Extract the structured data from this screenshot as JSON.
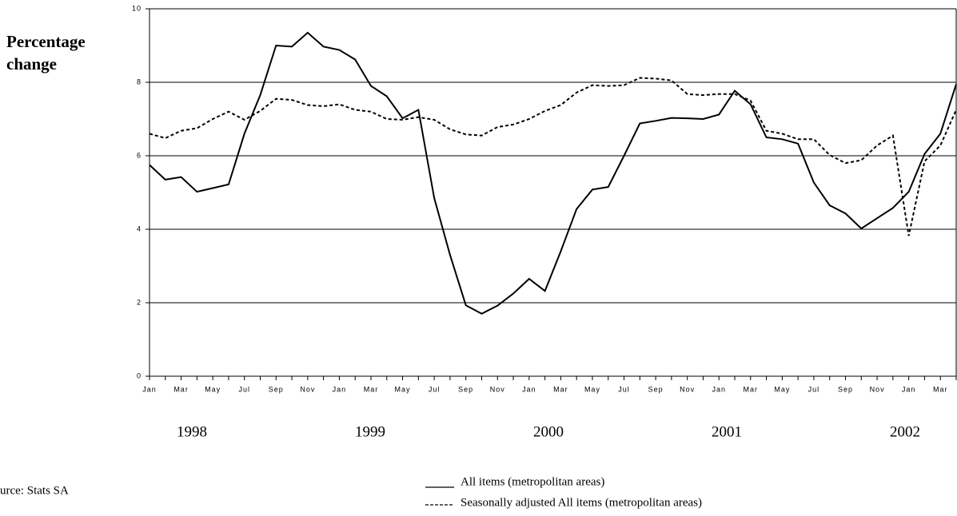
{
  "chart_data": {
    "type": "line",
    "ylabel": [
      "Percentage",
      "change"
    ],
    "categories": [
      "Jan",
      null,
      "Mar",
      null,
      "May",
      null,
      "Jul",
      null,
      "Sep",
      null,
      "Nov",
      null,
      "Jan",
      null,
      "Mar",
      null,
      "May",
      null,
      "Jul",
      null,
      "Sep",
      null,
      "Nov",
      null,
      "Jan",
      null,
      "Mar",
      null,
      "May",
      null,
      "Jul",
      null,
      "Sep",
      null,
      "Nov",
      null,
      "Jan",
      null,
      "Mar",
      null,
      "May",
      null,
      "Jul",
      null,
      "Sep",
      null,
      "Nov",
      null,
      "Jan",
      null,
      "Mar",
      null
    ],
    "year_labels": [
      "1998",
      "1999",
      "2000",
      "2001",
      "2002"
    ],
    "series": [
      {
        "name": "All items (metropolitan areas)",
        "color": "#000000",
        "dash": "solid",
        "values": [
          5.75,
          5.35,
          5.42,
          5.02,
          5.12,
          5.22,
          6.6,
          7.65,
          9.0,
          8.97,
          9.35,
          8.97,
          8.88,
          8.62,
          7.9,
          7.62,
          7.02,
          7.25,
          4.85,
          3.3,
          1.93,
          1.7,
          1.92,
          2.25,
          2.65,
          2.32,
          3.4,
          4.55,
          5.08,
          5.15,
          6.0,
          6.88,
          6.95,
          7.03,
          7.02,
          7.0,
          7.12,
          7.77,
          7.4,
          6.5,
          6.45,
          6.33,
          5.27,
          4.65,
          4.43,
          4.02,
          4.3,
          4.58,
          5.02,
          6.05,
          6.6,
          7.95
        ]
      },
      {
        "name": "Seasonally adjusted All items  (metropolitan areas)",
        "color": "#000000",
        "dash": "dashed",
        "values": [
          6.6,
          6.48,
          6.68,
          6.75,
          7.0,
          7.2,
          6.98,
          7.22,
          7.55,
          7.52,
          7.38,
          7.35,
          7.4,
          7.25,
          7.2,
          7.0,
          6.98,
          7.05,
          6.98,
          6.72,
          6.58,
          6.55,
          6.78,
          6.85,
          7.0,
          7.22,
          7.38,
          7.72,
          7.92,
          7.9,
          7.92,
          8.12,
          8.1,
          8.05,
          7.68,
          7.65,
          7.68,
          7.68,
          7.5,
          6.68,
          6.6,
          6.45,
          6.45,
          6.02,
          5.8,
          5.88,
          6.28,
          6.55,
          3.82,
          5.85,
          6.28,
          7.25
        ]
      }
    ],
    "ylim": [
      0,
      10
    ],
    "yticks": [
      0,
      2,
      4,
      6,
      8,
      10
    ],
    "grid": true,
    "source": "urce: Stats SA"
  }
}
